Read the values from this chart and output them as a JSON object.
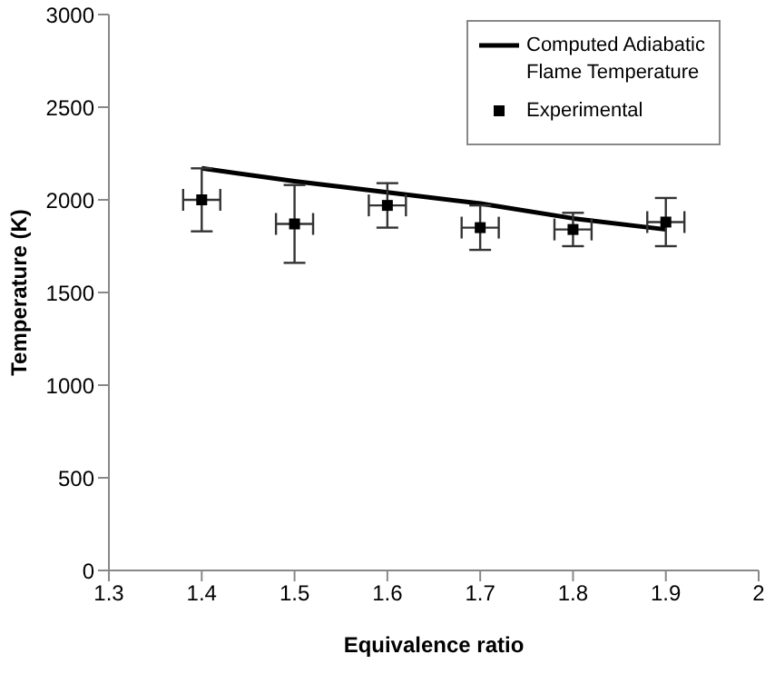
{
  "chart_data": {
    "type": "scatter",
    "xlabel": "Equivalence ratio",
    "ylabel": "Temperature (K)",
    "xlim": [
      1.3,
      2
    ],
    "xticks": [
      1.3,
      1.4,
      1.5,
      1.6,
      1.7,
      1.8,
      1.9,
      2
    ],
    "ylim": [
      0,
      3000
    ],
    "yticks": [
      0,
      500,
      1000,
      1500,
      2000,
      2500,
      3000
    ],
    "grid": false,
    "legend": "top right",
    "marker": "square",
    "series": [
      {
        "name": "Computed Adiabatic Flame Temperature",
        "type": "line",
        "color": "#000000",
        "line_style": "solid",
        "marker": "none",
        "x": [
          1.4,
          1.5,
          1.6,
          1.7,
          1.8,
          1.9
        ],
        "values": [
          2170,
          2100,
          2040,
          1980,
          1900,
          1840
        ]
      },
      {
        "name": "Experimental",
        "color": "#000000",
        "x": [
          1.4,
          1.5,
          1.6,
          1.7,
          1.8,
          1.9
        ],
        "values": [
          2000,
          1870,
          1970,
          1850,
          1840,
          1880
        ],
        "errors": [
          170,
          210,
          120,
          120,
          90,
          130
        ],
        "xerrors": [
          0.02,
          0.02,
          0.02,
          0.02,
          0.02,
          0.02
        ]
      }
    ]
  }
}
